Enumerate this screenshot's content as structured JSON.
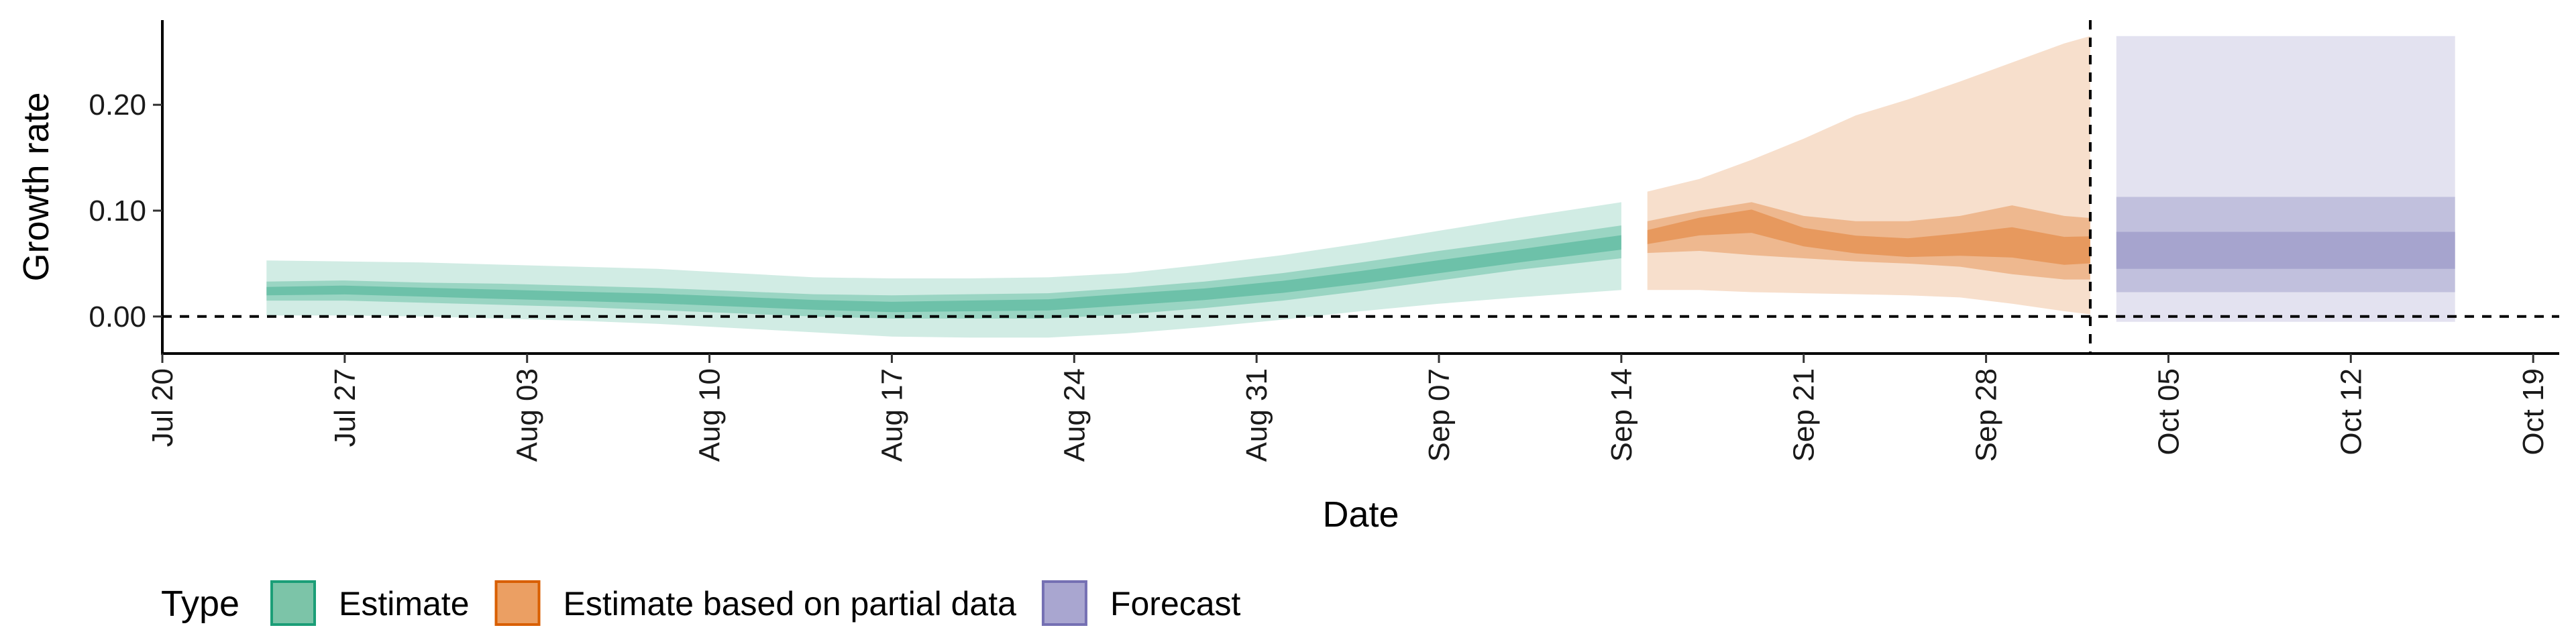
{
  "chart_data": {
    "type": "area",
    "xlabel": "Date",
    "ylabel": "Growth rate",
    "x_range": [
      "2020-07-20",
      "2020-10-20"
    ],
    "y_range": [
      -0.035,
      0.28
    ],
    "x_ticks": [
      {
        "date": "2020-07-20",
        "label": "Jul 20"
      },
      {
        "date": "2020-07-27",
        "label": "Jul 27"
      },
      {
        "date": "2020-08-03",
        "label": "Aug 03"
      },
      {
        "date": "2020-08-10",
        "label": "Aug 10"
      },
      {
        "date": "2020-08-17",
        "label": "Aug 17"
      },
      {
        "date": "2020-08-24",
        "label": "Aug 24"
      },
      {
        "date": "2020-08-31",
        "label": "Aug 31"
      },
      {
        "date": "2020-09-07",
        "label": "Sep 07"
      },
      {
        "date": "2020-09-14",
        "label": "Sep 14"
      },
      {
        "date": "2020-09-21",
        "label": "Sep 21"
      },
      {
        "date": "2020-09-28",
        "label": "Sep 28"
      },
      {
        "date": "2020-10-05",
        "label": "Oct 05"
      },
      {
        "date": "2020-10-12",
        "label": "Oct 12"
      },
      {
        "date": "2020-10-19",
        "label": "Oct 19"
      }
    ],
    "y_ticks": [
      {
        "value": 0.0,
        "label": "0.00"
      },
      {
        "value": 0.1,
        "label": "0.10"
      },
      {
        "value": 0.2,
        "label": "0.20"
      }
    ],
    "reference_lines": [
      {
        "orientation": "horizontal",
        "value": 0,
        "style": "dashed"
      },
      {
        "orientation": "vertical",
        "date": "2020-10-02",
        "style": "dashed"
      }
    ],
    "grid": false,
    "legend": {
      "title": "Type",
      "position": "bottom-left",
      "entries": [
        {
          "label": "Estimate",
          "fill": "#7cc4a8",
          "stroke": "#1b9e77"
        },
        {
          "label": "Estimate based on partial data",
          "fill": "#eb9f63",
          "stroke": "#d95f02"
        },
        {
          "label": "Forecast",
          "fill": "#a9a6d0",
          "stroke": "#7570b3"
        }
      ]
    },
    "series": [
      {
        "name": "Estimate",
        "color": "#1b9e77",
        "x": [
          "2020-07-24",
          "2020-07-27",
          "2020-07-30",
          "2020-08-02",
          "2020-08-05",
          "2020-08-08",
          "2020-08-11",
          "2020-08-14",
          "2020-08-17",
          "2020-08-20",
          "2020-08-23",
          "2020-08-26",
          "2020-08-29",
          "2020-09-01",
          "2020-09-04",
          "2020-09-07",
          "2020-09-10",
          "2020-09-14"
        ],
        "lower90": [
          0.001,
          0.001,
          0.0,
          -0.002,
          -0.004,
          -0.007,
          -0.011,
          -0.015,
          -0.019,
          -0.02,
          -0.02,
          -0.016,
          -0.01,
          -0.003,
          0.005,
          0.012,
          0.018,
          0.025
        ],
        "lower50": [
          0.015,
          0.015,
          0.013,
          0.011,
          0.009,
          0.006,
          0.003,
          0.0,
          -0.002,
          -0.002,
          -0.002,
          0.002,
          0.008,
          0.015,
          0.024,
          0.034,
          0.044,
          0.055
        ],
        "median": [
          0.024,
          0.025,
          0.023,
          0.021,
          0.019,
          0.017,
          0.014,
          0.011,
          0.009,
          0.01,
          0.011,
          0.016,
          0.021,
          0.028,
          0.037,
          0.047,
          0.057,
          0.07
        ],
        "upper50": [
          0.033,
          0.034,
          0.032,
          0.031,
          0.029,
          0.027,
          0.024,
          0.021,
          0.02,
          0.021,
          0.022,
          0.027,
          0.033,
          0.041,
          0.051,
          0.062,
          0.072,
          0.086
        ],
        "upper90": [
          0.053,
          0.052,
          0.051,
          0.049,
          0.047,
          0.045,
          0.041,
          0.037,
          0.036,
          0.036,
          0.037,
          0.041,
          0.049,
          0.058,
          0.069,
          0.081,
          0.093,
          0.108
        ]
      },
      {
        "name": "Estimate based on partial data",
        "color": "#d95f02",
        "x": [
          "2020-09-15",
          "2020-09-17",
          "2020-09-19",
          "2020-09-21",
          "2020-09-23",
          "2020-09-25",
          "2020-09-27",
          "2020-09-29",
          "2020-10-01",
          "2020-10-02"
        ],
        "lower90": [
          0.025,
          0.025,
          0.023,
          0.022,
          0.021,
          0.02,
          0.018,
          0.012,
          0.005,
          0.002
        ],
        "lower50": [
          0.06,
          0.062,
          0.058,
          0.055,
          0.052,
          0.05,
          0.047,
          0.04,
          0.035,
          0.035
        ],
        "median": [
          0.075,
          0.085,
          0.09,
          0.075,
          0.068,
          0.065,
          0.068,
          0.07,
          0.062,
          0.063
        ],
        "upper50": [
          0.09,
          0.1,
          0.108,
          0.095,
          0.09,
          0.09,
          0.095,
          0.105,
          0.095,
          0.093
        ],
        "upper90": [
          0.118,
          0.13,
          0.148,
          0.168,
          0.19,
          0.205,
          0.222,
          0.24,
          0.258,
          0.265
        ]
      },
      {
        "name": "Forecast",
        "color": "#7570b3",
        "x": [
          "2020-10-03",
          "2020-10-16"
        ],
        "lower90": [
          -0.005,
          -0.005
        ],
        "lower50": [
          0.023,
          0.023
        ],
        "lower20": [
          0.045,
          0.045
        ],
        "upper20": [
          0.08,
          0.08
        ],
        "upper50": [
          0.113,
          0.113
        ],
        "upper90": [
          0.265,
          0.265
        ]
      }
    ]
  }
}
